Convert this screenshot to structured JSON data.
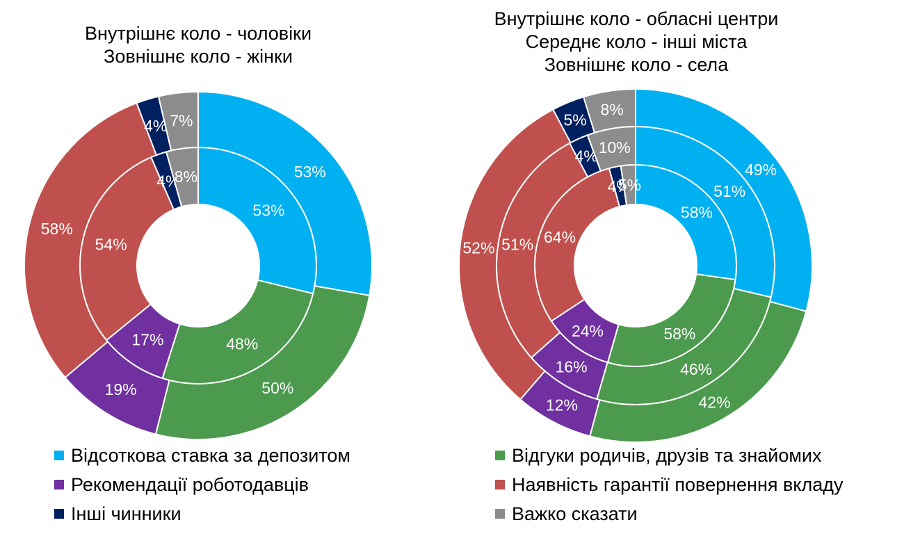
{
  "colors": {
    "deposit_rate": "#00B0F0",
    "reviews": "#4C9A4E",
    "employers": "#7030A0",
    "guarantee": "#C0504D",
    "other": "#002060",
    "hard_to_say": "#8C8C8C"
  },
  "chart_data": [
    {
      "type": "donut",
      "title_lines": [
        "Внутрішнє коло - чоловіки",
        "Зовнішнє коло - жінки"
      ],
      "categories": [
        "Відсоткова ставка за депозитом",
        "Відгуки родичів, друзів та знайомих",
        "Рекомендації роботодавців",
        "Наявність гарантії повернення вкладу",
        "Інші чинники",
        "Важко сказати"
      ],
      "series": [
        {
          "ring": "inner",
          "values": [
            53,
            48,
            17,
            54,
            4,
            8
          ],
          "labels": [
            "53%",
            "48%",
            "17%",
            "54%",
            "4%",
            "8%"
          ]
        },
        {
          "ring": "outer",
          "values": [
            53,
            50,
            19,
            58,
            4,
            7
          ],
          "labels": [
            "53%",
            "50%",
            "19%",
            "58%",
            "4%",
            "7%"
          ]
        }
      ]
    },
    {
      "type": "donut",
      "title_lines": [
        "Внутрішнє коло - обласні центри",
        "Середнє коло - інші міста",
        "Зовнішнє коло - села"
      ],
      "categories": [
        "Відсоткова ставка за депозитом",
        "Відгуки родичів, друзів та знайомих",
        "Рекомендації роботодавців",
        "Наявність гарантії повернення вкладу",
        "Інші чинники",
        "Важко сказати"
      ],
      "series": [
        {
          "ring": "inner",
          "values": [
            58,
            58,
            24,
            64,
            4,
            5
          ],
          "labels": [
            "58%",
            "58%",
            "24%",
            "64%",
            "4%",
            "5%"
          ]
        },
        {
          "ring": "middle",
          "values": [
            51,
            46,
            16,
            51,
            4,
            10
          ],
          "labels": [
            "51%",
            "46%",
            "16%",
            "51%",
            "4%",
            "10%"
          ]
        },
        {
          "ring": "outer",
          "values": [
            49,
            42,
            12,
            52,
            5,
            8
          ],
          "labels": [
            "49%",
            "42%",
            "12%",
            "52%",
            "5%",
            "8%"
          ]
        }
      ]
    }
  ],
  "legend": [
    {
      "label": "Відсоткова ставка за депозитом",
      "color": "#00B0F0"
    },
    {
      "label": "Рекомендації роботодавців",
      "color": "#7030A0"
    },
    {
      "label": "Інші чинники",
      "color": "#002060"
    },
    {
      "label": "Відгуки родичів, друзів та знайомих",
      "color": "#4C9A4E"
    },
    {
      "label": "Наявність гарантії повернення вкладу",
      "color": "#C0504D"
    },
    {
      "label": "Важко сказати",
      "color": "#8C8C8C"
    }
  ]
}
